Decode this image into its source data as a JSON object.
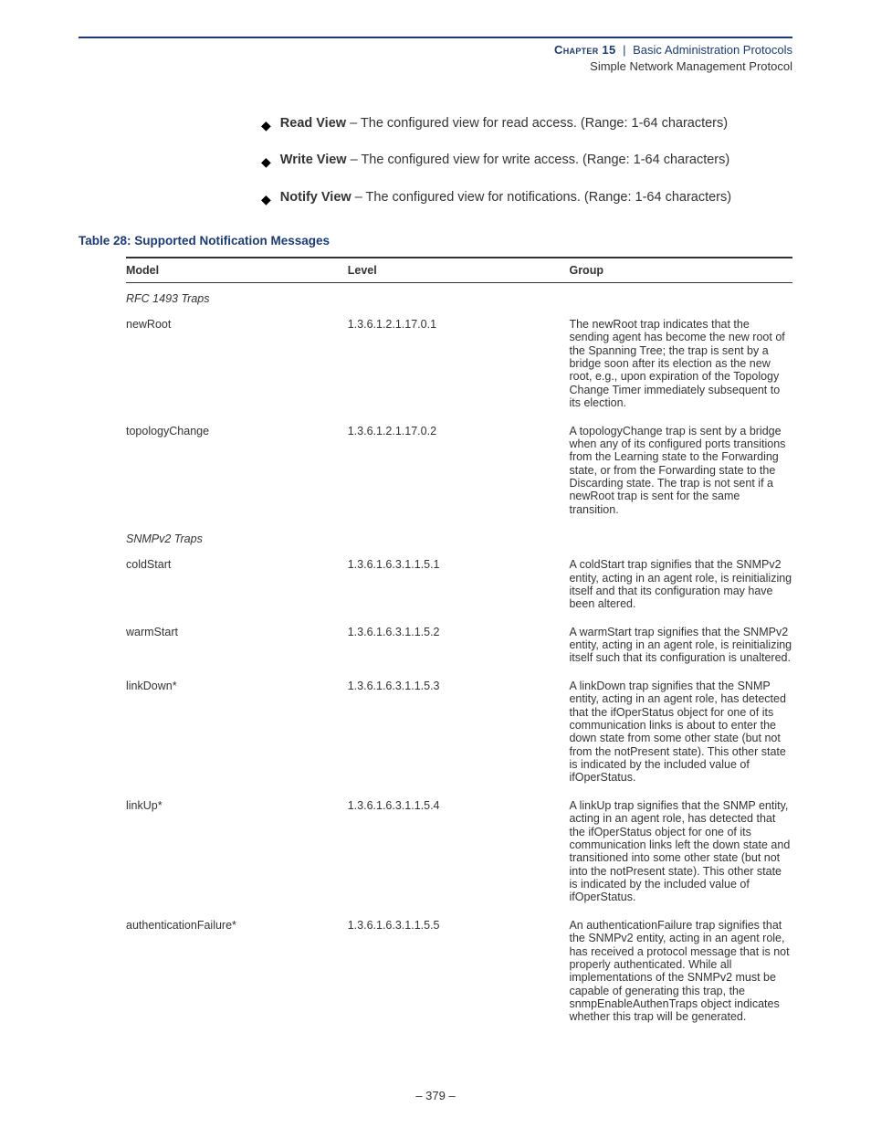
{
  "header": {
    "chapter_label": "Chapter 15",
    "separator": "|",
    "chapter_title": "Basic Administration Protocols",
    "subtitle": "Simple Network Management Protocol"
  },
  "bullets": [
    {
      "term": "Read View",
      "desc": " – The configured view for read access. (Range: 1-64 characters)"
    },
    {
      "term": "Write View",
      "desc": " – The configured view for write access. (Range: 1-64 characters)"
    },
    {
      "term": "Notify View",
      "desc": " – The configured view for notifications. (Range: 1-64 characters)"
    }
  ],
  "table": {
    "caption": "Table 28: Supported Notification Messages",
    "columns": {
      "model": "Model",
      "level": "Level",
      "group": "Group"
    },
    "sections": [
      {
        "title": "RFC 1493 Traps",
        "rows": [
          {
            "model": "newRoot",
            "level": "1.3.6.1.2.1.17.0.1",
            "group": "The newRoot trap indicates that the sending agent has become the new root of the Spanning Tree; the trap is sent by a bridge soon after its election as the new root, e.g., upon expiration of the Topology Change Timer immediately subsequent to its election."
          },
          {
            "model": "topologyChange",
            "level": "1.3.6.1.2.1.17.0.2",
            "group": "A topologyChange trap is sent by a bridge when any of its configured ports transitions from the Learning state to the Forwarding state, or from the Forwarding state to the Discarding state. The trap is not sent if a newRoot trap is sent for the same transition."
          }
        ]
      },
      {
        "title": "SNMPv2 Traps",
        "rows": [
          {
            "model": "coldStart",
            "level": "1.3.6.1.6.3.1.1.5.1",
            "group": "A coldStart trap signifies that the SNMPv2 entity, acting in an agent role, is reinitializing itself and that its configuration may have been altered."
          },
          {
            "model": "warmStart",
            "level": "1.3.6.1.6.3.1.1.5.2",
            "group": "A warmStart trap signifies that the SNMPv2 entity, acting in an agent role, is reinitializing itself such that its configuration is unaltered."
          },
          {
            "model": "linkDown*",
            "level": "1.3.6.1.6.3.1.1.5.3",
            "group": "A linkDown trap signifies that the SNMP entity, acting in an agent role, has detected that the ifOperStatus object for one of its communication links is about to enter the down state from some other state (but not from the notPresent state). This other state is indicated by the included value of ifOperStatus."
          },
          {
            "model": "linkUp*",
            "level": "1.3.6.1.6.3.1.1.5.4",
            "group": "A linkUp trap signifies that the SNMP entity, acting in an agent role, has detected that the ifOperStatus object for one of its communication links left the down state and transitioned into some other state (but not into the notPresent state). This other state is indicated by the included value of ifOperStatus."
          },
          {
            "model": "authenticationFailure*",
            "level": "1.3.6.1.6.3.1.1.5.5",
            "group": "An authenticationFailure trap signifies that the SNMPv2 entity, acting in an agent role, has received a protocol message that is not properly authenticated. While all implementations of the SNMPv2 must be capable of generating this trap, the snmpEnableAuthenTraps object indicates whether this trap will be generated."
          }
        ]
      }
    ]
  },
  "footer": {
    "page_number": "–  379  –"
  }
}
